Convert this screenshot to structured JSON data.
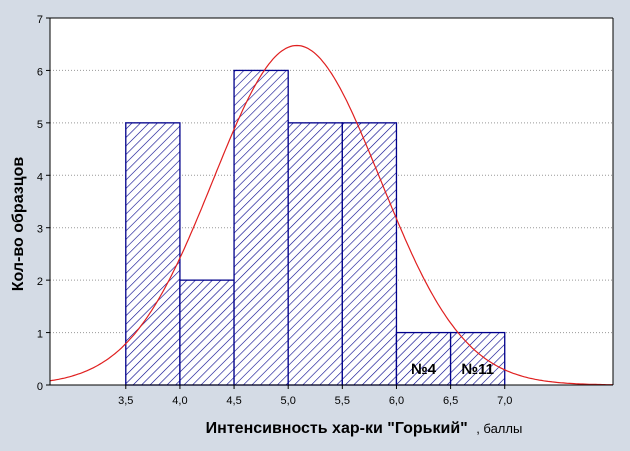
{
  "chart_data": {
    "type": "bar",
    "subtype": "histogram",
    "title": "",
    "xlabel": "Интенсивность хар-ки \"Горький\"",
    "xlabel_unit": ", баллы",
    "ylabel": "Кол-во образцов",
    "xlim": [
      2.8,
      8.0
    ],
    "ylim": [
      0,
      7
    ],
    "x_ticks": [
      "3,5",
      "4,0",
      "4,5",
      "5,0",
      "5,5",
      "6,0",
      "6,5",
      "7,0"
    ],
    "x_tick_values": [
      3.5,
      4.0,
      4.5,
      5.0,
      5.5,
      6.0,
      6.5,
      7.0
    ],
    "y_ticks": [
      "0",
      "1",
      "2",
      "3",
      "4",
      "5",
      "6",
      "7"
    ],
    "y_tick_values": [
      0,
      1,
      2,
      3,
      4,
      5,
      6,
      7
    ],
    "grid": true,
    "bins": [
      {
        "from": 3.5,
        "to": 4.0,
        "value": 5,
        "label": ""
      },
      {
        "from": 4.0,
        "to": 4.5,
        "value": 2,
        "label": ""
      },
      {
        "from": 4.5,
        "to": 5.0,
        "value": 6,
        "label": ""
      },
      {
        "from": 5.0,
        "to": 5.5,
        "value": 5,
        "label": ""
      },
      {
        "from": 5.5,
        "to": 6.0,
        "value": 5,
        "label": ""
      },
      {
        "from": 6.0,
        "to": 6.5,
        "value": 1,
        "label": "№4"
      },
      {
        "from": 6.5,
        "to": 7.0,
        "value": 1,
        "label": "№11"
      }
    ],
    "bar_fill": "hatched",
    "bar_color": "#00008b",
    "normal_curve": {
      "mean": 5.08,
      "sd": 0.77,
      "n": 25,
      "bin_width": 0.5,
      "color": "#e02020"
    },
    "colors": {
      "background": "#d4dbe5",
      "plot_area": "#ffffff",
      "grid": "#999999",
      "axis": "#000000"
    }
  }
}
